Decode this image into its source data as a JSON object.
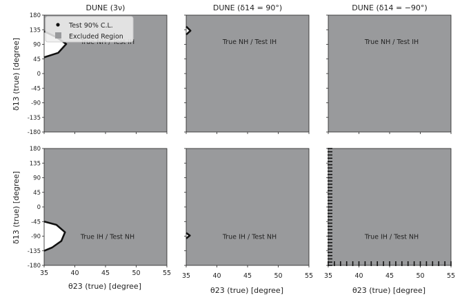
{
  "figure": {
    "ylabel": "δ13 (true) [degree]",
    "xlabel": "θ23 (true) [degree]",
    "legend": {
      "location": "top-left",
      "entries": [
        "Test 90% C.L.",
        "Excluded Region"
      ]
    }
  },
  "colors": {
    "excluded": "#999a9c",
    "allowed": "#ffffff",
    "contour": "#111111"
  },
  "chart_data": [
    {
      "type": "area",
      "title": "DUNE (3ν)",
      "annotation": "True NH / Test IH",
      "xlim": [
        35,
        55
      ],
      "ylim": [
        -180,
        180
      ],
      "xticks": [
        35,
        40,
        45,
        50,
        55
      ],
      "yticks": [
        -180,
        -135,
        -90,
        -45,
        0,
        45,
        90,
        135,
        180
      ],
      "allowed_region": [
        [
          35,
          130
        ],
        [
          37,
          112
        ],
        [
          38.6,
          91
        ],
        [
          37.3,
          64
        ],
        [
          35,
          50
        ]
      ]
    },
    {
      "type": "area",
      "title": "DUNE (δ14 = 90°)",
      "annotation": "True NH / Test IH",
      "xlim": [
        35,
        55
      ],
      "ylim": [
        -180,
        180
      ],
      "xticks": [
        35,
        40,
        45,
        50,
        55
      ],
      "yticks": [
        -180,
        -135,
        -90,
        -45,
        0,
        45,
        90,
        135,
        180
      ],
      "allowed_region": [
        [
          35,
          145
        ],
        [
          35.7,
          132
        ],
        [
          35,
          120
        ]
      ]
    },
    {
      "type": "area",
      "title": "DUNE (δ14 = −90°)",
      "annotation": "True NH / Test IH",
      "xlim": [
        35,
        55
      ],
      "ylim": [
        -180,
        180
      ],
      "xticks": [
        35,
        40,
        45,
        50,
        55
      ],
      "yticks": [
        -180,
        -135,
        -90,
        -45,
        0,
        45,
        90,
        135,
        180
      ],
      "allowed_region": []
    },
    {
      "type": "area",
      "title": "",
      "annotation": "True IH / Test NH",
      "xlim": [
        35,
        55
      ],
      "ylim": [
        -180,
        180
      ],
      "xticks": [
        35,
        40,
        45,
        50,
        55
      ],
      "yticks": [
        -180,
        -135,
        -90,
        -45,
        0,
        45,
        90,
        135,
        180
      ],
      "allowed_region": [
        [
          35,
          -45
        ],
        [
          37,
          -55
        ],
        [
          38.4,
          -78
        ],
        [
          37.8,
          -105
        ],
        [
          36.3,
          -125
        ],
        [
          35,
          -135
        ]
      ]
    },
    {
      "type": "area",
      "title": "",
      "annotation": "True IH / Test NH",
      "xlim": [
        35,
        55
      ],
      "ylim": [
        -180,
        180
      ],
      "xticks": [
        35,
        40,
        45,
        50,
        55
      ],
      "yticks": [
        -180,
        -135,
        -90,
        -45,
        0,
        45,
        90,
        135,
        180
      ],
      "allowed_region": [
        [
          35,
          -80
        ],
        [
          35.6,
          -88
        ],
        [
          35,
          -97
        ]
      ]
    },
    {
      "type": "area",
      "title": "",
      "annotation": "True IH / Test NH",
      "xlim": [
        35,
        55
      ],
      "ylim": [
        -180,
        180
      ],
      "xticks": [
        35,
        40,
        45,
        50,
        55
      ],
      "yticks": [
        -180,
        -135,
        -90,
        -45,
        0,
        45,
        90,
        135,
        180
      ],
      "allowed_region": []
    }
  ]
}
